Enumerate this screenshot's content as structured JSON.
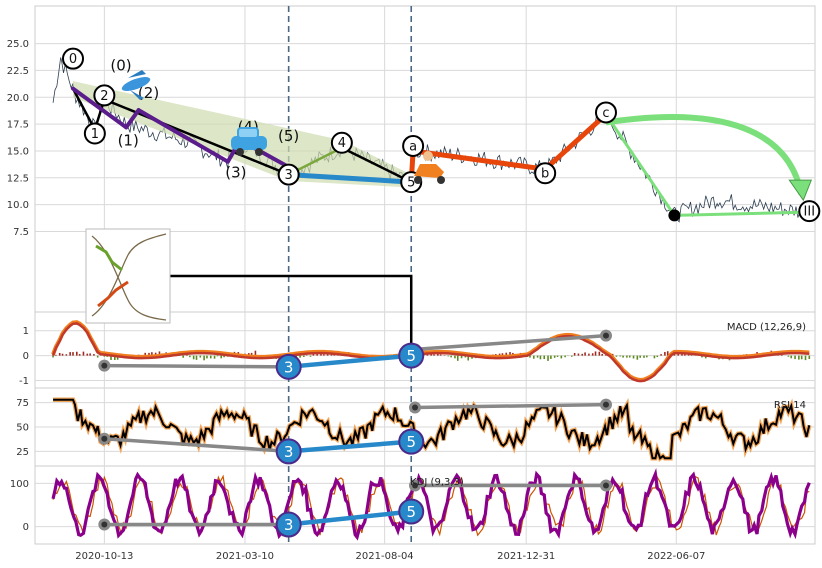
{
  "chart_data": [
    {
      "type": "line",
      "panel": "price",
      "ylim": [
        0,
        28.5
      ],
      "yticks": [
        "7.5",
        "10.0",
        "12.5",
        "15.0",
        "17.5",
        "20.0",
        "22.5",
        "25.0"
      ],
      "xticks": [
        "2020-10-13",
        "2021-03-10",
        "2021-08-04",
        "2021-12-31",
        "2022-06-07"
      ],
      "xrange": [
        "2020-08-01",
        "2022-10-31"
      ],
      "wave_points": [
        {
          "label": "0",
          "date": "2020-09-10",
          "value": 20.8
        },
        {
          "label": "1",
          "date": "2020-10-03",
          "value": 17.0
        },
        {
          "label": "2",
          "date": "2020-10-13",
          "value": 19.8
        },
        {
          "label": "3",
          "date": "2021-04-25",
          "value": 12.8
        },
        {
          "label": "4",
          "date": "2021-06-20",
          "value": 15.3
        },
        {
          "label": "5",
          "date": "2021-09-01",
          "value": 12.1
        },
        {
          "label": "a",
          "date": "2021-09-03",
          "value": 15.0
        },
        {
          "label": "b",
          "date": "2022-01-20",
          "value": 13.3
        },
        {
          "label": "c",
          "date": "2022-03-25",
          "value": 18.4
        },
        {
          "label": "III",
          "date": "2022-10-25",
          "value": 9.3
        }
      ],
      "sub_wave_points": [
        {
          "label": "(0)",
          "date": "2020-09-10",
          "value": 20.8
        },
        {
          "label": "(1)",
          "date": "2020-11-05",
          "value": 17.2
        },
        {
          "label": "(2)",
          "date": "2020-11-18",
          "value": 18.8
        },
        {
          "label": "(3)",
          "date": "2021-02-20",
          "value": 14.0
        },
        {
          "label": "(4)",
          "date": "2021-03-05",
          "value": 16.0
        },
        {
          "label": "(5)",
          "date": "2021-04-25",
          "value": 13.5
        }
      ],
      "markers": [
        {
          "date": "2022-03-25",
          "value": 18.4
        },
        {
          "date": "2022-06-05",
          "value": 9.0
        }
      ],
      "vlines": [
        "2021-04-25",
        "2021-09-01"
      ]
    },
    {
      "type": "line",
      "panel": "macd",
      "title": "MACD (12,26,9)",
      "ylim": [
        -1.3,
        1.75
      ],
      "yticks": [
        "-1",
        "0",
        "1"
      ],
      "divergence_points": [
        {
          "date": "2020-10-13",
          "value": -0.4
        },
        {
          "date": "2021-04-25",
          "value": -0.45
        },
        {
          "date": "2021-09-01",
          "value": 0.0
        },
        {
          "date": "2021-09-05",
          "value": 0.25
        },
        {
          "date": "2022-03-25",
          "value": 0.8
        }
      ]
    },
    {
      "type": "line",
      "panel": "rsi",
      "title": "RSI 14",
      "ylim": [
        10,
        90
      ],
      "yticks": [
        "25",
        "50",
        "75"
      ],
      "divergence_points": [
        {
          "date": "2020-10-13",
          "value": 38
        },
        {
          "date": "2021-04-25",
          "value": 25
        },
        {
          "date": "2021-09-01",
          "value": 35
        },
        {
          "date": "2021-09-05",
          "value": 70
        },
        {
          "date": "2022-03-25",
          "value": 73
        }
      ]
    },
    {
      "type": "line",
      "panel": "kdj",
      "title": "KDJ (9,3,3)",
      "ylim": [
        -40,
        140
      ],
      "yticks": [
        "0",
        "100"
      ],
      "divergence_points": [
        {
          "date": "2020-10-13",
          "value": 5
        },
        {
          "date": "2021-04-25",
          "value": 5
        },
        {
          "date": "2021-09-01",
          "value": 35
        },
        {
          "date": "2021-09-05",
          "value": 95
        },
        {
          "date": "2022-03-25",
          "value": 95
        }
      ]
    }
  ],
  "colors": {
    "price_line": "#2c3e50",
    "wave_black": "#000000",
    "wave_purple": "#5b1c8c",
    "wave_blue": "#2789c9",
    "wave_orange": "#e8450a",
    "wave_green": "#7be07b",
    "channel_fill": "#cfdcaf",
    "divergence_gray": "#888888",
    "macd_orange": "#f07e1e",
    "macd_red": "#c0392b",
    "rsi_black": "#000000",
    "kdj_purple": "#8b008b",
    "vline": "#4a6785"
  }
}
